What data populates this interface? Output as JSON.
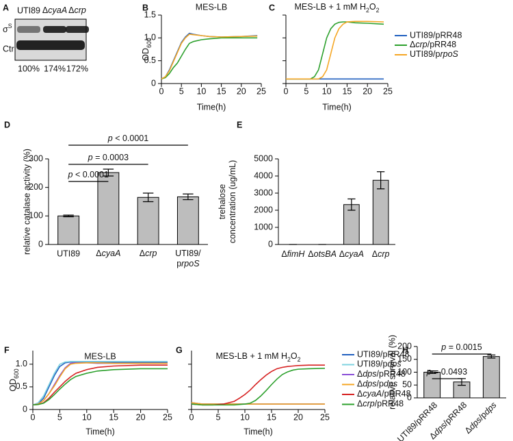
{
  "chart_data": [
    {
      "type": "blot",
      "panel": "A",
      "categories": [
        "UTI89",
        [
          "Δ",
          {
            "t": "cyaA",
            "s": "i"
          }
        ],
        [
          "Δ",
          {
            "t": "crp",
            "s": "i"
          }
        ]
      ],
      "rows": [
        [
          "σ",
          {
            "t": "S",
            "s": "sup"
          }
        ],
        "Ctrl"
      ],
      "values": [
        100,
        174,
        172
      ],
      "value_labels": [
        "100%",
        "174%",
        "172%"
      ]
    },
    {
      "type": "line",
      "panel": "B",
      "title": "MES-LB",
      "ylabel": [
        "OD",
        {
          "t": "600",
          "s": "sub"
        }
      ],
      "xlabel": "Time(h)",
      "xlim": [
        0,
        25
      ],
      "xticks": [
        0,
        5,
        10,
        15,
        20,
        25
      ],
      "ylim": [
        0,
        1.5
      ],
      "yticks": [
        0,
        0.5,
        {
          "value": 1,
          "label": "1.0"
        },
        1.5
      ],
      "x": [
        0,
        1,
        2,
        3,
        4,
        5,
        6,
        7,
        8,
        10,
        12,
        15,
        20,
        24
      ],
      "series": [
        {
          "color": "#1f5fbf",
          "values": [
            0.1,
            0.15,
            0.3,
            0.5,
            0.7,
            0.9,
            1.02,
            1.1,
            1.08,
            1.05,
            1.03,
            1.02,
            1.03,
            1.05
          ]
        },
        {
          "color": "#2ca02c",
          "values": [
            0.1,
            0.13,
            0.22,
            0.35,
            0.45,
            0.6,
            0.75,
            0.88,
            0.92,
            0.96,
            0.98,
            1.0,
            1.0,
            1.0
          ]
        },
        {
          "color": "#f5a623",
          "values": [
            0.1,
            0.15,
            0.28,
            0.48,
            0.68,
            0.88,
            1.0,
            1.08,
            1.07,
            1.05,
            1.03,
            1.02,
            1.03,
            1.04
          ]
        }
      ]
    },
    {
      "type": "line",
      "panel": "C",
      "title": [
        "MES-LB + 1 mM H",
        {
          "t": "2",
          "s": "sub"
        },
        "O",
        {
          "t": "2",
          "s": "sub"
        }
      ],
      "xlabel": "Time(h)",
      "xlim": [
        0,
        25
      ],
      "xticks": [
        0,
        5,
        10,
        15,
        20,
        25
      ],
      "ylim": [
        0,
        1.5
      ],
      "yticks": [
        0,
        0.5,
        1,
        1.5
      ],
      "ytick_labels": false,
      "x": [
        0,
        2,
        4,
        6,
        7,
        8,
        9,
        10,
        11,
        12,
        13,
        14,
        15,
        17,
        20,
        24
      ],
      "series": [
        {
          "name": "UTI89/pRR48",
          "color": "#1f5fbf",
          "values": [
            0.1,
            0.1,
            0.1,
            0.1,
            0.1,
            0.1,
            0.1,
            0.1,
            0.1,
            0.1,
            0.1,
            0.1,
            0.1,
            0.1,
            0.1,
            0.1
          ]
        },
        {
          "name": [
            "Δ",
            {
              "t": "crp",
              "s": "i"
            },
            "/pRR48"
          ],
          "color": "#2ca02c",
          "values": [
            0.1,
            0.1,
            0.1,
            0.1,
            0.15,
            0.3,
            0.65,
            1.0,
            1.2,
            1.3,
            1.34,
            1.35,
            1.35,
            1.33,
            1.32,
            1.3
          ]
        },
        {
          "name": [
            "UTI89/p",
            {
              "t": "rpoS",
              "s": "i"
            }
          ],
          "color": "#f5a623",
          "values": [
            0.1,
            0.1,
            0.1,
            0.1,
            0.1,
            0.1,
            0.15,
            0.3,
            0.65,
            1.0,
            1.2,
            1.3,
            1.35,
            1.36,
            1.36,
            1.35
          ]
        }
      ]
    },
    {
      "type": "bar",
      "panel": "D",
      "ylabel": "relative catalase activity (%)",
      "color": "#bdbdbd",
      "ylim": [
        0,
        300
      ],
      "yticks": [
        0,
        100,
        200,
        300
      ],
      "categories": [
        "UTI89",
        [
          "Δ",
          {
            "t": "cyaA",
            "s": "i"
          }
        ],
        [
          "Δ",
          {
            "t": "crp",
            "s": "i"
          }
        ],
        [
          "UTI89/",
          {
            "t": "p",
            "s": "nl"
          },
          {
            "t": "rpoS",
            "s": "i"
          }
        ]
      ],
      "values": [
        100,
        252,
        165,
        167
      ],
      "errors": [
        3,
        12,
        15,
        10
      ],
      "annotations": [
        [
          {
            "t": "p",
            "s": "i"
          },
          " < 0.0001"
        ],
        [
          {
            "t": "p",
            "s": "i"
          },
          " = 0.0003"
        ],
        [
          {
            "t": "p",
            "s": "i"
          },
          " < 0.0001"
        ]
      ]
    },
    {
      "type": "bar",
      "panel": "E",
      "ylabel": [
        "trehalose",
        {
          "t": "concentration (ug/mL)",
          "s": "nl"
        }
      ],
      "color": "#bdbdbd",
      "ylim": [
        0,
        5000
      ],
      "yticks": [
        0,
        1000,
        2000,
        3000,
        4000,
        5000
      ],
      "categories": [
        [
          "Δ",
          {
            "t": "fimH",
            "s": "i"
          }
        ],
        [
          "Δ",
          {
            "t": "otsBA",
            "s": "i"
          }
        ],
        [
          "Δ",
          {
            "t": "cyaA",
            "s": "i"
          }
        ],
        [
          "Δ",
          {
            "t": "crp",
            "s": "i"
          }
        ]
      ],
      "values": [
        0,
        0,
        2330,
        3750
      ],
      "errors": [
        0,
        0,
        330,
        500
      ]
    },
    {
      "type": "line",
      "panel": "F",
      "title": "MES-LB",
      "ylabel": [
        "OD",
        {
          "t": "600",
          "s": "sub"
        }
      ],
      "xlabel": "Time(h)",
      "xlim": [
        0,
        25
      ],
      "xticks": [
        0,
        5,
        10,
        15,
        20,
        25
      ],
      "ylim": [
        0,
        1.3
      ],
      "yticks": [
        0,
        0.5,
        {
          "value": 1,
          "label": "1.0"
        }
      ],
      "x": [
        0,
        1,
        2,
        3,
        4,
        5,
        6,
        7,
        8,
        10,
        12,
        15,
        20,
        25
      ],
      "series": [
        {
          "color": "#1f5fbf",
          "values": [
            0.1,
            0.13,
            0.25,
            0.5,
            0.75,
            0.95,
            1.03,
            1.05,
            1.05,
            1.05,
            1.05,
            1.04,
            1.04,
            1.04
          ]
        },
        {
          "color": "#7fd3e0",
          "values": [
            0.1,
            0.15,
            0.3,
            0.55,
            0.8,
            1.0,
            1.05,
            1.06,
            1.06,
            1.06,
            1.06,
            1.06,
            1.06,
            1.06
          ]
        },
        {
          "color": "#8a4fd8",
          "values": [
            0.1,
            0.12,
            0.2,
            0.35,
            0.55,
            0.75,
            0.92,
            1.02,
            1.03,
            1.03,
            1.02,
            1.02,
            1.02,
            1.02
          ]
        },
        {
          "color": "#f5a623",
          "values": [
            0.1,
            0.12,
            0.2,
            0.35,
            0.52,
            0.72,
            0.9,
            1.0,
            1.02,
            1.03,
            1.03,
            1.02,
            1.02,
            1.02
          ]
        },
        {
          "color": "#d62020",
          "values": [
            0.1,
            0.11,
            0.15,
            0.25,
            0.38,
            0.5,
            0.62,
            0.72,
            0.8,
            0.88,
            0.93,
            0.96,
            0.98,
            0.98
          ]
        },
        {
          "color": "#2ca02c",
          "values": [
            0.1,
            0.11,
            0.14,
            0.22,
            0.33,
            0.45,
            0.56,
            0.66,
            0.73,
            0.8,
            0.85,
            0.88,
            0.9,
            0.9
          ]
        }
      ]
    },
    {
      "type": "line",
      "panel": "G",
      "title": [
        "MES-LB + 1 mM H",
        {
          "t": "2",
          "s": "sub"
        },
        "O",
        {
          "t": "2",
          "s": "sub"
        }
      ],
      "xlabel": "Time(h)",
      "xlim": [
        0,
        25
      ],
      "xticks": [
        0,
        5,
        10,
        15,
        20,
        25
      ],
      "ylim": [
        0,
        1.3
      ],
      "yticks": [
        0,
        0.5,
        1
      ],
      "ytick_labels": false,
      "x": [
        0,
        2,
        4,
        6,
        8,
        9,
        10,
        11,
        12,
        13,
        14,
        15,
        16,
        17,
        18,
        19,
        20,
        22,
        25
      ],
      "series": [
        {
          "name": "UTI89/pRR48",
          "color": "#1f5fbf",
          "values": [
            0.15,
            0.12,
            0.12,
            0.12,
            0.12,
            0.12,
            0.12,
            0.12,
            0.12,
            0.12,
            0.12,
            0.12,
            0.12,
            0.12,
            0.12,
            0.12,
            0.12,
            0.12,
            0.12
          ]
        },
        {
          "name": [
            "UTI89/p",
            {
              "t": "dps",
              "s": "i"
            }
          ],
          "color": "#7fd3e0",
          "values": [
            0.15,
            0.12,
            0.12,
            0.12,
            0.12,
            0.12,
            0.12,
            0.12,
            0.12,
            0.12,
            0.12,
            0.12,
            0.12,
            0.12,
            0.12,
            0.12,
            0.12,
            0.12,
            0.12
          ]
        },
        {
          "name": [
            "Δ",
            {
              "t": "dps",
              "s": "i"
            },
            "/pRR48"
          ],
          "color": "#8a4fd8",
          "values": [
            0.15,
            0.12,
            0.12,
            0.12,
            0.12,
            0.12,
            0.12,
            0.12,
            0.12,
            0.12,
            0.12,
            0.12,
            0.12,
            0.12,
            0.12,
            0.12,
            0.12,
            0.12,
            0.12
          ]
        },
        {
          "name": [
            "Δ",
            {
              "t": "dps",
              "s": "i"
            },
            "/p",
            {
              "t": "dps",
              "s": "i"
            }
          ],
          "color": "#f5a623",
          "values": [
            0.15,
            0.12,
            0.12,
            0.12,
            0.12,
            0.12,
            0.12,
            0.12,
            0.12,
            0.12,
            0.12,
            0.12,
            0.12,
            0.12,
            0.12,
            0.12,
            0.12,
            0.12,
            0.12
          ]
        },
        {
          "name": [
            "Δ",
            {
              "t": "cyaA",
              "s": "i"
            },
            "/pRR48"
          ],
          "color": "#d62020",
          "values": [
            0.12,
            0.1,
            0.1,
            0.12,
            0.18,
            0.25,
            0.33,
            0.43,
            0.55,
            0.66,
            0.76,
            0.84,
            0.9,
            0.93,
            0.95,
            0.96,
            0.97,
            0.98,
            0.98
          ]
        },
        {
          "name": [
            "Δ",
            {
              "t": "crp",
              "s": "i"
            },
            "/pRR48"
          ],
          "color": "#2ca02c",
          "values": [
            0.12,
            0.1,
            0.1,
            0.1,
            0.1,
            0.11,
            0.12,
            0.14,
            0.2,
            0.3,
            0.42,
            0.55,
            0.67,
            0.77,
            0.83,
            0.87,
            0.89,
            0.9,
            0.91
          ]
        }
      ]
    },
    {
      "type": "bar",
      "panel": "H",
      "ylabel": "relative survival (%)",
      "color": "#bdbdbd",
      "ylim": [
        0,
        200
      ],
      "yticks": [
        0,
        50,
        100,
        150,
        200
      ],
      "categories": [
        "UTI89/pRR48",
        [
          "Δ",
          {
            "t": "dps",
            "s": "i"
          },
          "/pRR48"
        ],
        [
          "Δ",
          {
            "t": "dps",
            "s": "i"
          },
          "/p",
          {
            "t": "dps",
            "s": "i"
          }
        ]
      ],
      "values": [
        100,
        62,
        161
      ],
      "errors": [
        5,
        13,
        6
      ],
      "annotations": [
        [
          {
            "t": "p",
            "s": "i"
          },
          " = 0.0015"
        ],
        [
          {
            "t": "p",
            "s": "i"
          },
          " = 0.0493"
        ]
      ]
    }
  ]
}
